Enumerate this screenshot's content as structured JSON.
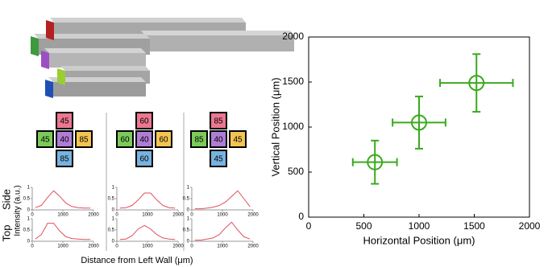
{
  "chart_data": [
    {
      "type": "scatter",
      "xlabel": "Horizontal Position (μm)",
      "ylabel": "Vertical Position (μm)",
      "x": [
        600,
        1000,
        1520
      ],
      "values": [
        610,
        1050,
        1490
      ],
      "xerr": [
        200,
        240,
        330
      ],
      "yerr": [
        240,
        290,
        320
      ],
      "color": "#3aaa1e",
      "xlim": [
        0,
        2000
      ],
      "ylim": [
        0,
        2000
      ],
      "xticks": [
        0,
        500,
        1000,
        1500,
        2000
      ],
      "yticks": [
        0,
        500,
        1000,
        1500,
        2000
      ]
    },
    {
      "type": "line",
      "x": [
        100,
        300,
        500,
        700,
        900,
        1100,
        1300,
        1500,
        1700,
        1900
      ],
      "values": [
        0.1,
        0.2,
        0.55,
        0.85,
        0.6,
        0.3,
        0.15,
        0.1,
        0.08,
        0.08
      ],
      "color": "#e0505a",
      "xlim": [
        0,
        2000
      ],
      "ylim": [
        0,
        1
      ],
      "xticks": [
        0,
        1000,
        2000
      ],
      "yticks": [
        0,
        0.5,
        1
      ]
    },
    {
      "type": "line",
      "x": [
        100,
        300,
        500,
        700,
        900,
        1100,
        1300,
        1500,
        1700,
        1900
      ],
      "values": [
        0.1,
        0.3,
        0.8,
        0.8,
        0.45,
        0.2,
        0.12,
        0.1,
        0.08,
        0.08
      ],
      "color": "#e0505a",
      "xlim": [
        0,
        2000
      ],
      "ylim": [
        0,
        1
      ],
      "xticks": [
        0,
        1000,
        2000
      ],
      "yticks": [
        0,
        0.5,
        1
      ]
    },
    {
      "type": "line",
      "x": [
        100,
        300,
        500,
        700,
        900,
        1100,
        1300,
        1500,
        1700,
        1900
      ],
      "values": [
        0.08,
        0.1,
        0.2,
        0.45,
        0.75,
        0.75,
        0.45,
        0.2,
        0.1,
        0.08
      ],
      "color": "#e0505a",
      "xlim": [
        0,
        2000
      ],
      "ylim": [
        0,
        1
      ],
      "xticks": [
        0,
        1000,
        2000
      ],
      "yticks": [
        0,
        0.5,
        1
      ]
    },
    {
      "type": "line",
      "x": [
        100,
        300,
        500,
        700,
        900,
        1100,
        1300,
        1500,
        1700,
        1900
      ],
      "values": [
        0.08,
        0.1,
        0.25,
        0.55,
        0.7,
        0.55,
        0.3,
        0.15,
        0.1,
        0.08
      ],
      "color": "#e0505a",
      "xlim": [
        0,
        2000
      ],
      "ylim": [
        0,
        1
      ],
      "xticks": [
        0,
        1000,
        2000
      ],
      "yticks": [
        0,
        0.5,
        1
      ]
    },
    {
      "type": "line",
      "x": [
        100,
        300,
        500,
        700,
        900,
        1100,
        1300,
        1500,
        1700,
        1900
      ],
      "values": [
        0.05,
        0.05,
        0.08,
        0.12,
        0.2,
        0.35,
        0.6,
        0.85,
        0.5,
        0.15
      ],
      "color": "#e0505a",
      "xlim": [
        0,
        2000
      ],
      "ylim": [
        0,
        1
      ],
      "xticks": [
        0,
        1000,
        2000
      ],
      "yticks": [
        0,
        0.5,
        1
      ]
    },
    {
      "type": "line",
      "x": [
        100,
        300,
        500,
        700,
        900,
        1100,
        1300,
        1500,
        1700,
        1900
      ],
      "values": [
        0.05,
        0.05,
        0.1,
        0.15,
        0.3,
        0.6,
        0.85,
        0.5,
        0.2,
        0.1
      ],
      "color": "#e0505a",
      "xlim": [
        0,
        2000
      ],
      "ylim": [
        0,
        1
      ],
      "xticks": [
        0,
        1000,
        2000
      ],
      "yticks": [
        0,
        0.5,
        1
      ]
    }
  ],
  "figure_labels": {
    "side": "Side",
    "top": "Top",
    "intensity": "Intensity (a.u.)",
    "distance": "Distance from Left Wall (μm)"
  },
  "diagrams": [
    {
      "top": "45",
      "left": "45",
      "center": "40",
      "right": "85",
      "bottom": "85"
    },
    {
      "top": "60",
      "left": "60",
      "center": "40",
      "right": "60",
      "bottom": "60"
    },
    {
      "top": "85",
      "left": "85",
      "center": "40",
      "right": "45",
      "bottom": "45"
    }
  ]
}
